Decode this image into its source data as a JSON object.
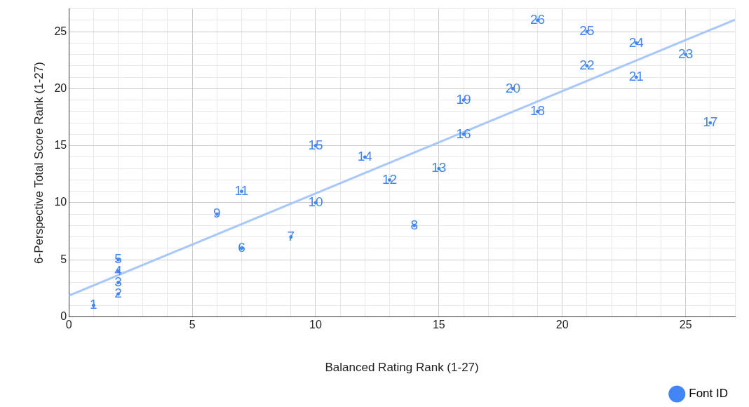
{
  "chart_data": {
    "type": "scatter",
    "xlabel": "Balanced Rating Rank (1-27)",
    "ylabel": "6-Perspective Total Score Rank (1-27)",
    "xlim": [
      0,
      27
    ],
    "ylim": [
      0,
      27
    ],
    "xticks": [
      0,
      {
        "value": 1,
        "label": null
      },
      {
        "value": 2,
        "label": null
      },
      {
        "value": 3,
        "label": null
      },
      {
        "value": 4,
        "label": null
      },
      5,
      {
        "value": 6,
        "label": null
      },
      {
        "value": 7,
        "label": null
      },
      {
        "value": 8,
        "label": null
      },
      {
        "value": 9,
        "label": null
      },
      10,
      {
        "value": 11,
        "label": null
      },
      {
        "value": 12,
        "label": null
      },
      {
        "value": 13,
        "label": null
      },
      {
        "value": 14,
        "label": null
      },
      15,
      {
        "value": 16,
        "label": null
      },
      {
        "value": 17,
        "label": null
      },
      {
        "value": 18,
        "label": null
      },
      {
        "value": 19,
        "label": null
      },
      20,
      {
        "value": 21,
        "label": null
      },
      {
        "value": 22,
        "label": null
      },
      {
        "value": 23,
        "label": null
      },
      {
        "value": 24,
        "label": null
      },
      25,
      {
        "value": 26,
        "label": null
      },
      {
        "value": 27,
        "label": null
      }
    ],
    "yticks": [
      0,
      {
        "value": 1,
        "label": null
      },
      {
        "value": 2,
        "label": null
      },
      {
        "value": 3,
        "label": null
      },
      {
        "value": 4,
        "label": null
      },
      5,
      {
        "value": 6,
        "label": null
      },
      {
        "value": 7,
        "label": null
      },
      {
        "value": 8,
        "label": null
      },
      {
        "value": 9,
        "label": null
      },
      10,
      {
        "value": 11,
        "label": null
      },
      {
        "value": 12,
        "label": null
      },
      {
        "value": 13,
        "label": null
      },
      {
        "value": 14,
        "label": null
      },
      15,
      {
        "value": 16,
        "label": null
      },
      {
        "value": 17,
        "label": null
      },
      {
        "value": 18,
        "label": null
      },
      {
        "value": 19,
        "label": null
      },
      20,
      {
        "value": 21,
        "label": null
      },
      {
        "value": 22,
        "label": null
      },
      {
        "value": 23,
        "label": null
      },
      {
        "value": 24,
        "label": null
      },
      25,
      {
        "value": 26,
        "label": null
      },
      {
        "value": 27,
        "label": null
      }
    ],
    "grid": true,
    "legend": "bottom right",
    "series": [
      {
        "name": "Font ID",
        "marker": "circle",
        "color": "#4285f4",
        "x": [
          1,
          2,
          2,
          2,
          2,
          7,
          9,
          14,
          6,
          10,
          7,
          13,
          15,
          12,
          10,
          16,
          26,
          19,
          16,
          18,
          23,
          21,
          25,
          23,
          21,
          19
        ],
        "values": [
          1,
          2,
          3,
          4,
          5,
          6,
          7,
          8,
          9,
          10,
          11,
          12,
          13,
          14,
          15,
          16,
          17,
          18,
          19,
          20,
          21,
          22,
          23,
          24,
          25,
          26
        ],
        "value_labels": [
          "1",
          "2",
          "3",
          "4",
          "5",
          "6",
          "7",
          "8",
          "9",
          "10",
          "11",
          "12",
          "13",
          "14",
          "15",
          "16",
          "17",
          "18",
          "19",
          "20",
          "21",
          "22",
          "23",
          "24",
          "25",
          "26"
        ]
      },
      {
        "type": "line",
        "color": "#a8c7fa",
        "x": [
          0,
          27
        ],
        "values": [
          1.85,
          26.05
        ]
      }
    ]
  }
}
